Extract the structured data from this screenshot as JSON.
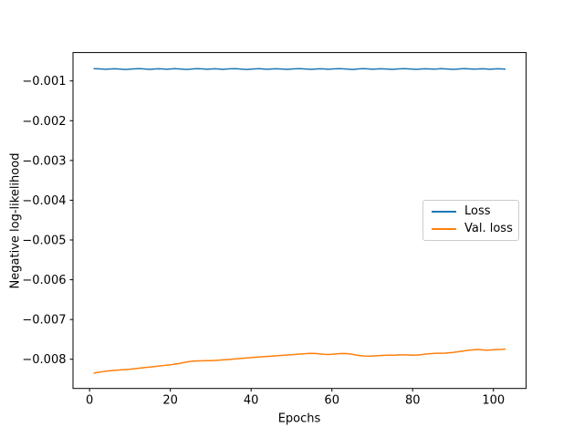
{
  "figure": {
    "xlabel": "Epochs",
    "ylabel": "Negative log-likelihood",
    "background": "#ffffff",
    "spine_color": "#000000"
  },
  "legend": {
    "position": "center right",
    "items": [
      {
        "label": "Loss",
        "color": "#1f77b4"
      },
      {
        "label": "Val. loss",
        "color": "#ff7f0e"
      }
    ]
  },
  "chart_data": {
    "type": "line",
    "title": "",
    "xlabel": "Epochs",
    "ylabel": "Negative log-likelihood",
    "grid": false,
    "legend_position": "center right",
    "xlim": [
      -4.1,
      108.1
    ],
    "ylim": [
      -0.008734,
      -0.000286
    ],
    "x_ticks": {
      "values": [
        0,
        20,
        40,
        60,
        80,
        100
      ],
      "labels": [
        "0",
        "20",
        "40",
        "60",
        "80",
        "100"
      ]
    },
    "y_ticks": {
      "values": [
        -0.001,
        -0.002,
        -0.003,
        -0.004,
        -0.005,
        -0.006,
        -0.007,
        -0.008
      ],
      "labels": [
        "−0.001",
        "−0.002",
        "−0.003",
        "−0.004",
        "−0.005",
        "−0.006",
        "−0.007",
        "−0.008"
      ]
    },
    "x": [
      1,
      2,
      3,
      4,
      5,
      6,
      7,
      8,
      9,
      10,
      11,
      12,
      13,
      14,
      15,
      16,
      17,
      18,
      19,
      20,
      21,
      22,
      23,
      24,
      25,
      26,
      27,
      28,
      29,
      30,
      31,
      32,
      33,
      34,
      35,
      36,
      37,
      38,
      39,
      40,
      41,
      42,
      43,
      44,
      45,
      46,
      47,
      48,
      49,
      50,
      51,
      52,
      53,
      54,
      55,
      56,
      57,
      58,
      59,
      60,
      61,
      62,
      63,
      64,
      65,
      66,
      67,
      68,
      69,
      70,
      71,
      72,
      73,
      74,
      75,
      76,
      77,
      78,
      79,
      80,
      81,
      82,
      83,
      84,
      85,
      86,
      87,
      88,
      89,
      90,
      91,
      92,
      93,
      94,
      95,
      96,
      97,
      98,
      99,
      100,
      101,
      102,
      103
    ],
    "series": [
      {
        "name": "Loss",
        "color": "#1f77b4",
        "values": [
          -0.00069,
          -0.000695,
          -0.0007,
          -0.000705,
          -0.0007,
          -0.000693,
          -0.000698,
          -0.000706,
          -0.000712,
          -0.000704,
          -0.000696,
          -0.00069,
          -0.000695,
          -0.000703,
          -0.000708,
          -0.0007,
          -0.000694,
          -0.000698,
          -0.000705,
          -0.000699,
          -0.000692,
          -0.000697,
          -0.000704,
          -0.00071,
          -0.000702,
          -0.000695,
          -0.000691,
          -0.000698,
          -0.000706,
          -0.0007,
          -0.000693,
          -0.000699,
          -0.000707,
          -0.000701,
          -0.000694,
          -0.00069,
          -0.000697,
          -0.000705,
          -0.000711,
          -0.000703,
          -0.000696,
          -0.000692,
          -0.000699,
          -0.000706,
          -0.0007,
          -0.000694,
          -0.000698,
          -0.000704,
          -0.000709,
          -0.000701,
          -0.000695,
          -0.000691,
          -0.000697,
          -0.000703,
          -0.000708,
          -0.0007,
          -0.000693,
          -0.000698,
          -0.000705,
          -0.000699,
          -0.000694,
          -0.00069,
          -0.000696,
          -0.000704,
          -0.00071,
          -0.000702,
          -0.000695,
          -0.000691,
          -0.000698,
          -0.000705,
          -0.0007,
          -0.000693,
          -0.000697,
          -0.000703,
          -0.000709,
          -0.000701,
          -0.000694,
          -0.00069,
          -0.000696,
          -0.000703,
          -0.000708,
          -0.0007,
          -0.000694,
          -0.000698,
          -0.000704,
          -0.000699,
          -0.000692,
          -0.000696,
          -0.000703,
          -0.000709,
          -0.000702,
          -0.000695,
          -0.000691,
          -0.000697,
          -0.000704,
          -0.0007,
          -0.000693,
          -0.000698,
          -0.000705,
          -0.000699,
          -0.000693,
          -0.000697,
          -0.000702
        ]
      },
      {
        "name": "Val. loss",
        "color": "#ff7f0e",
        "values": [
          -0.00835,
          -0.00833,
          -0.008315,
          -0.0083,
          -0.00829,
          -0.00828,
          -0.008272,
          -0.008265,
          -0.008258,
          -0.00825,
          -0.00824,
          -0.008228,
          -0.008215,
          -0.008205,
          -0.008195,
          -0.008185,
          -0.008172,
          -0.00816,
          -0.00815,
          -0.00814,
          -0.008125,
          -0.00811,
          -0.00809,
          -0.00807,
          -0.008055,
          -0.008045,
          -0.00804,
          -0.008038,
          -0.008036,
          -0.008034,
          -0.00803,
          -0.008024,
          -0.008016,
          -0.008008,
          -0.008,
          -0.007992,
          -0.007984,
          -0.007975,
          -0.007966,
          -0.007958,
          -0.00795,
          -0.007943,
          -0.007936,
          -0.007929,
          -0.007922,
          -0.007915,
          -0.007907,
          -0.0079,
          -0.007893,
          -0.007886,
          -0.007878,
          -0.00787,
          -0.007862,
          -0.007855,
          -0.007852,
          -0.007855,
          -0.007865,
          -0.007875,
          -0.00788,
          -0.007875,
          -0.007865,
          -0.007857,
          -0.007855,
          -0.00786,
          -0.007875,
          -0.007895,
          -0.00791,
          -0.007918,
          -0.00792,
          -0.007918,
          -0.007912,
          -0.007905,
          -0.0079,
          -0.007898,
          -0.007898,
          -0.007895,
          -0.00789,
          -0.007888,
          -0.007892,
          -0.007898,
          -0.007895,
          -0.007885,
          -0.007872,
          -0.007862,
          -0.007855,
          -0.00785,
          -0.007848,
          -0.007845,
          -0.007838,
          -0.007828,
          -0.007815,
          -0.0078,
          -0.007785,
          -0.007772,
          -0.007762,
          -0.007755,
          -0.00776,
          -0.00777,
          -0.007768,
          -0.00776,
          -0.007755,
          -0.00775,
          -0.007742
        ]
      }
    ]
  }
}
